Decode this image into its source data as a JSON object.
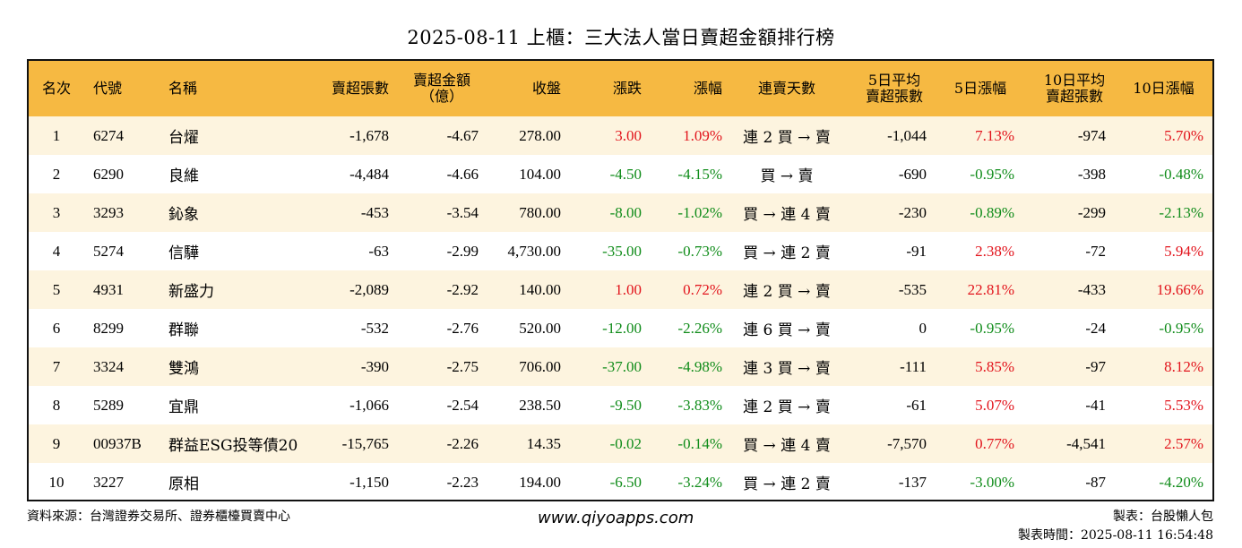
{
  "title": "2025-08-11 上櫃：三大法人當日賣超金額排行榜",
  "headers": {
    "rank": "名次",
    "code": "代號",
    "name": "名稱",
    "sell_shares": "賣超張數",
    "sell_amount_1": "賣超金額",
    "sell_amount_2": "（億）",
    "close": "收盤",
    "change": "漲跌",
    "change_pct": "漲幅",
    "streak": "連賣天數",
    "avg5_1": "5日平均",
    "avg5_2": "賣超張數",
    "pct5": "5日漲幅",
    "avg10_1": "10日平均",
    "avg10_2": "賣超張數",
    "pct10": "10日漲幅"
  },
  "rows": [
    {
      "rank": "1",
      "code": "6274",
      "name": "台燿",
      "shares": "-1,678",
      "amount": "-4.67",
      "close": "278.00",
      "change": "3.00",
      "change_pct": "1.09%",
      "streak": "連 2 買 → 賣",
      "avg5": "-1,044",
      "pct5": "7.13%",
      "avg10": "-974",
      "pct10": "5.70%"
    },
    {
      "rank": "2",
      "code": "6290",
      "name": "良維",
      "shares": "-4,484",
      "amount": "-4.66",
      "close": "104.00",
      "change": "-4.50",
      "change_pct": "-4.15%",
      "streak": "買 → 賣",
      "avg5": "-690",
      "pct5": "-0.95%",
      "avg10": "-398",
      "pct10": "-0.48%"
    },
    {
      "rank": "3",
      "code": "3293",
      "name": "鈊象",
      "shares": "-453",
      "amount": "-3.54",
      "close": "780.00",
      "change": "-8.00",
      "change_pct": "-1.02%",
      "streak": "買 → 連 4 賣",
      "avg5": "-230",
      "pct5": "-0.89%",
      "avg10": "-299",
      "pct10": "-2.13%"
    },
    {
      "rank": "4",
      "code": "5274",
      "name": "信驊",
      "shares": "-63",
      "amount": "-2.99",
      "close": "4,730.00",
      "change": "-35.00",
      "change_pct": "-0.73%",
      "streak": "買 → 連 2 賣",
      "avg5": "-91",
      "pct5": "2.38%",
      "avg10": "-72",
      "pct10": "5.94%"
    },
    {
      "rank": "5",
      "code": "4931",
      "name": "新盛力",
      "shares": "-2,089",
      "amount": "-2.92",
      "close": "140.00",
      "change": "1.00",
      "change_pct": "0.72%",
      "streak": "連 2 買 → 賣",
      "avg5": "-535",
      "pct5": "22.81%",
      "avg10": "-433",
      "pct10": "19.66%"
    },
    {
      "rank": "6",
      "code": "8299",
      "name": "群聯",
      "shares": "-532",
      "amount": "-2.76",
      "close": "520.00",
      "change": "-12.00",
      "change_pct": "-2.26%",
      "streak": "連 6 買 → 賣",
      "avg5": "0",
      "pct5": "-0.95%",
      "avg10": "-24",
      "pct10": "-0.95%"
    },
    {
      "rank": "7",
      "code": "3324",
      "name": "雙鴻",
      "shares": "-390",
      "amount": "-2.75",
      "close": "706.00",
      "change": "-37.00",
      "change_pct": "-4.98%",
      "streak": "連 3 買 → 賣",
      "avg5": "-111",
      "pct5": "5.85%",
      "avg10": "-97",
      "pct10": "8.12%"
    },
    {
      "rank": "8",
      "code": "5289",
      "name": "宜鼎",
      "shares": "-1,066",
      "amount": "-2.54",
      "close": "238.50",
      "change": "-9.50",
      "change_pct": "-3.83%",
      "streak": "連 2 買 → 賣",
      "avg5": "-61",
      "pct5": "5.07%",
      "avg10": "-41",
      "pct10": "5.53%"
    },
    {
      "rank": "9",
      "code": "00937B",
      "name": "群益ESG投等債20",
      "shares": "-15,765",
      "amount": "-2.26",
      "close": "14.35",
      "change": "-0.02",
      "change_pct": "-0.14%",
      "streak": "買 → 連 4 賣",
      "avg5": "-7,570",
      "pct5": "0.77%",
      "avg10": "-4,541",
      "pct10": "2.57%"
    },
    {
      "rank": "10",
      "code": "3227",
      "name": "原相",
      "shares": "-1,150",
      "amount": "-2.23",
      "close": "194.00",
      "change": "-6.50",
      "change_pct": "-3.24%",
      "streak": "買 → 連 2 賣",
      "avg5": "-137",
      "pct5": "-3.00%",
      "avg10": "-87",
      "pct10": "-4.20%"
    }
  ],
  "colors": {
    "header_bg": "#f6b942",
    "alt_row_bg": "#fdf4df",
    "positive": "#e2141c",
    "negative": "#108c1a"
  },
  "footer": {
    "source": "資料來源：台灣證券交易所、證券櫃檯買賣中心",
    "website": "www.qiyoapps.com",
    "maker": "製表：台股懶人包",
    "made_time": "製表時間：2025-08-11 16:54:48"
  }
}
